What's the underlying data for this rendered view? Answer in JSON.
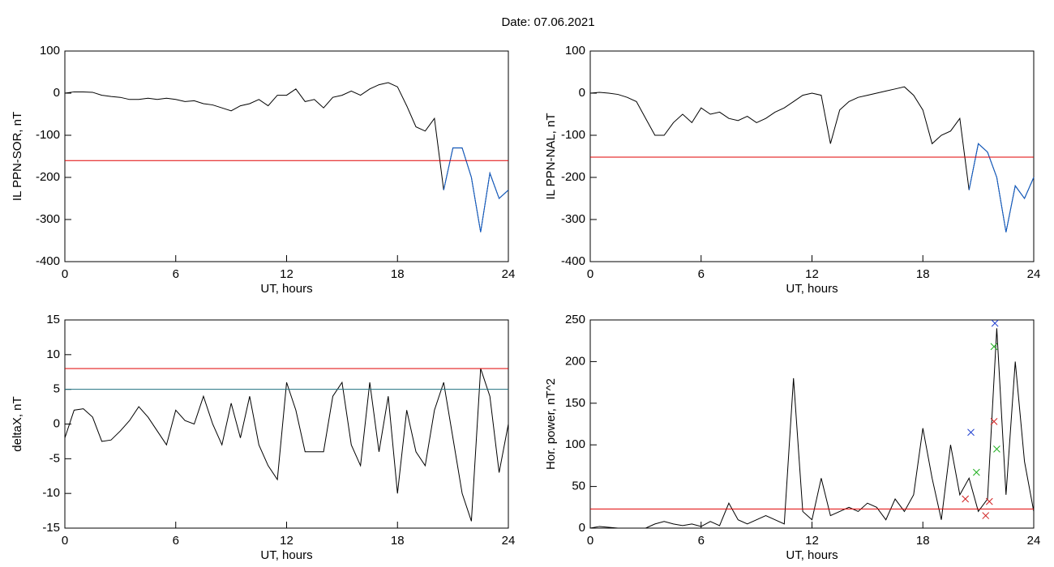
{
  "title": "Date:  07.06.2021",
  "chart_data": [
    {
      "type": "line",
      "xlabel": "UT, hours",
      "ylabel": "IL PPN-SOR, nT",
      "xlim": [
        0,
        24
      ],
      "xticks": [
        0,
        6,
        12,
        18,
        24
      ],
      "ylim": [
        -400,
        100
      ],
      "yticks": [
        -400,
        -300,
        -200,
        -100,
        0,
        100
      ],
      "x": [
        0,
        0.5,
        1,
        1.5,
        2,
        2.5,
        3,
        3.5,
        4,
        4.5,
        5,
        5.5,
        6,
        6.5,
        7,
        7.5,
        8,
        8.5,
        9,
        9.5,
        10,
        10.5,
        11,
        11.5,
        12,
        12.5,
        13,
        13.5,
        14,
        14.5,
        15,
        15.5,
        16,
        16.5,
        17,
        17.5,
        18,
        18.5,
        19,
        19.5,
        20,
        20.5,
        21,
        21.5,
        22,
        22.5,
        23,
        23.5,
        24
      ],
      "hlines": [
        {
          "value": -160,
          "color": "#e00000"
        }
      ],
      "series": [
        {
          "color": "#000000",
          "values": [
            0,
            3,
            3,
            2,
            -5,
            -8,
            -10,
            -15,
            -15,
            -12,
            -15,
            -12,
            -15,
            -20,
            -18,
            -25,
            -28,
            -35,
            -42,
            -30,
            -25,
            -15,
            -30,
            -5,
            -5,
            10,
            -20,
            -15,
            -35,
            -10,
            -5,
            5,
            -5,
            10,
            20,
            25,
            15,
            -30,
            -80,
            -90,
            -60,
            -230,
            -130,
            -130,
            -200,
            -330,
            -190,
            -250,
            -230
          ]
        },
        {
          "color": "#1060d0",
          "values": [
            null,
            null,
            null,
            null,
            null,
            null,
            null,
            null,
            null,
            null,
            null,
            null,
            null,
            null,
            null,
            null,
            null,
            null,
            null,
            null,
            null,
            null,
            null,
            null,
            null,
            null,
            null,
            null,
            null,
            null,
            null,
            null,
            null,
            null,
            null,
            null,
            null,
            null,
            null,
            null,
            null,
            -230,
            -130,
            -130,
            -200,
            -330,
            -190,
            -250,
            -230
          ]
        }
      ]
    },
    {
      "type": "line",
      "xlabel": "UT, hours",
      "ylabel": "IL PPN-NAL, nT",
      "xlim": [
        0,
        24
      ],
      "xticks": [
        0,
        6,
        12,
        18,
        24
      ],
      "ylim": [
        -400,
        100
      ],
      "yticks": [
        -400,
        -300,
        -200,
        -100,
        0,
        100
      ],
      "x": [
        0,
        0.5,
        1,
        1.5,
        2,
        2.5,
        3,
        3.5,
        4,
        4.5,
        5,
        5.5,
        6,
        6.5,
        7,
        7.5,
        8,
        8.5,
        9,
        9.5,
        10,
        10.5,
        11,
        11.5,
        12,
        12.5,
        13,
        13.5,
        14,
        14.5,
        15,
        15.5,
        16,
        16.5,
        17,
        17.5,
        18,
        18.5,
        19,
        19.5,
        20,
        20.5,
        21,
        21.5,
        22,
        22.5,
        23,
        23.5,
        24
      ],
      "hlines": [
        {
          "value": -152,
          "color": "#e00000"
        }
      ],
      "series": [
        {
          "color": "#000000",
          "values": [
            0,
            2,
            0,
            -3,
            -10,
            -20,
            -60,
            -100,
            -100,
            -70,
            -50,
            -70,
            -35,
            -50,
            -45,
            -60,
            -65,
            -55,
            -70,
            -60,
            -45,
            -35,
            -20,
            -5,
            0,
            -5,
            -120,
            -40,
            -20,
            -10,
            -5,
            0,
            5,
            10,
            15,
            -5,
            -40,
            -120,
            -100,
            -90,
            -60,
            -230,
            -120,
            -140,
            -200,
            -330,
            -220,
            -250,
            -200
          ]
        },
        {
          "color": "#1060d0",
          "values": [
            null,
            null,
            null,
            null,
            null,
            null,
            null,
            null,
            null,
            null,
            null,
            null,
            null,
            null,
            null,
            null,
            null,
            null,
            null,
            null,
            null,
            null,
            null,
            null,
            null,
            null,
            null,
            null,
            null,
            null,
            null,
            null,
            null,
            null,
            null,
            null,
            null,
            null,
            null,
            null,
            null,
            -230,
            -120,
            -140,
            -200,
            -330,
            -220,
            -250,
            -200
          ]
        }
      ]
    },
    {
      "type": "line",
      "xlabel": "UT, hours",
      "ylabel": "deltaX, nT",
      "xlim": [
        0,
        24
      ],
      "xticks": [
        0,
        6,
        12,
        18,
        24
      ],
      "ylim": [
        -15,
        15
      ],
      "yticks": [
        -15,
        -10,
        -5,
        0,
        5,
        10,
        15
      ],
      "x": [
        0,
        0.5,
        1,
        1.5,
        2,
        2.5,
        3,
        3.5,
        4,
        4.5,
        5,
        5.5,
        6,
        6.5,
        7,
        7.5,
        8,
        8.5,
        9,
        9.5,
        10,
        10.5,
        11,
        11.5,
        12,
        12.5,
        13,
        13.5,
        14,
        14.5,
        15,
        15.5,
        16,
        16.5,
        17,
        17.5,
        18,
        18.5,
        19,
        19.5,
        20,
        20.5,
        21,
        21.5,
        22,
        22.5,
        23,
        23.5,
        24
      ],
      "hlines": [
        {
          "value": 8,
          "color": "#e00000"
        },
        {
          "value": 5,
          "color": "#207080"
        }
      ],
      "series": [
        {
          "color": "#000000",
          "values": [
            -2,
            2,
            2.2,
            1,
            -2.5,
            -2.3,
            -1,
            0.5,
            2.5,
            1,
            -1,
            -3,
            2,
            0.5,
            0,
            4,
            0,
            -3,
            3,
            -2,
            4,
            -3,
            -6,
            -8,
            6,
            2,
            -4,
            -4,
            -4,
            4,
            6,
            -3,
            -6,
            6,
            -4,
            4,
            -10,
            2,
            -4,
            -6,
            2,
            6,
            -2,
            -10,
            -14,
            8,
            4,
            -7,
            0
          ]
        }
      ]
    },
    {
      "type": "line",
      "xlabel": "UT, hours",
      "ylabel": "Hor. power, nT^2",
      "xlim": [
        0,
        24
      ],
      "xticks": [
        0,
        6,
        12,
        18,
        24
      ],
      "ylim": [
        0,
        250
      ],
      "yticks": [
        0,
        50,
        100,
        150,
        200,
        250
      ],
      "x": [
        0,
        0.5,
        1,
        1.5,
        2,
        2.5,
        3,
        3.5,
        4,
        4.5,
        5,
        5.5,
        6,
        6.5,
        7,
        7.5,
        8,
        8.5,
        9,
        9.5,
        10,
        10.5,
        11,
        11.5,
        12,
        12.5,
        13,
        13.5,
        14,
        14.5,
        15,
        15.5,
        16,
        16.5,
        17,
        17.5,
        18,
        18.5,
        19,
        19.5,
        20,
        20.5,
        21,
        21.5,
        22,
        22.5,
        23,
        23.5,
        24
      ],
      "hlines": [
        {
          "value": 23,
          "color": "#e00000"
        }
      ],
      "series": [
        {
          "color": "#000000",
          "values": [
            0,
            2,
            1,
            0,
            0,
            0,
            0,
            5,
            8,
            5,
            3,
            5,
            2,
            8,
            3,
            30,
            10,
            5,
            10,
            15,
            10,
            5,
            180,
            20,
            10,
            60,
            15,
            20,
            25,
            20,
            30,
            25,
            10,
            35,
            20,
            40,
            120,
            60,
            10,
            100,
            40,
            60,
            20,
            35,
            240,
            40,
            200,
            80,
            20
          ]
        },
        {
          "color": "#2040d0",
          "marker": "x",
          "x": [
            20.6,
            21.9
          ],
          "values": [
            115,
            246
          ]
        },
        {
          "color": "#20b020",
          "marker": "x",
          "x": [
            20.9,
            21.85,
            22.0
          ],
          "values": [
            67,
            218,
            95
          ]
        },
        {
          "color": "#d02020",
          "marker": "x",
          "x": [
            20.3,
            21.4,
            21.6,
            21.85
          ],
          "values": [
            35,
            15,
            32,
            128
          ]
        }
      ]
    }
  ]
}
